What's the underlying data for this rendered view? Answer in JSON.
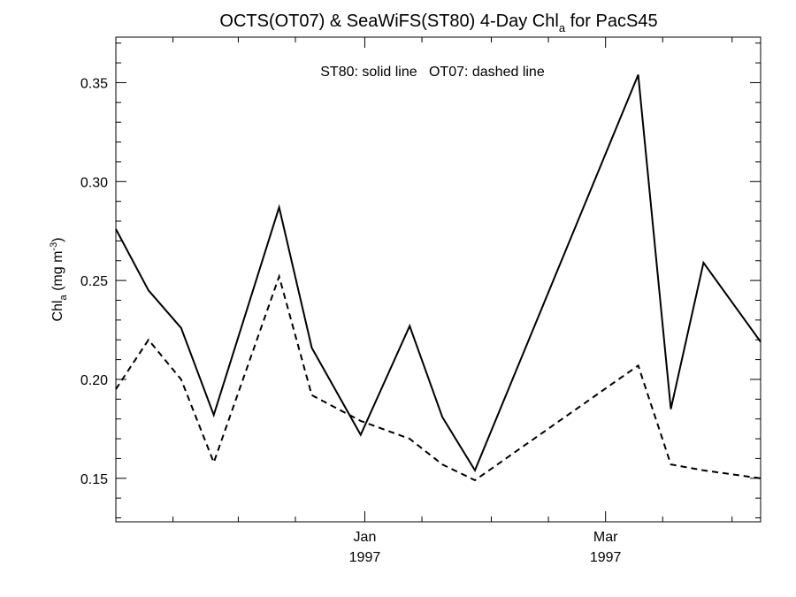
{
  "chart_data": {
    "type": "line",
    "title": {
      "main": "OCTS(OT07) & SeaWiFS(ST80) 4-Day Chl",
      "sub": "a",
      "suffix": " for PacS45"
    },
    "ylabel": {
      "main": "Chl",
      "sub": "a",
      "unit_pre": " (mg m",
      "sup": "-3",
      "unit_post": ")"
    },
    "xlabel": "",
    "legend_text": "ST80: solid line   OT07: dashed line",
    "xlim": [
      "1996-11-01",
      "1997-04-08"
    ],
    "ylim": [
      0.128,
      0.373
    ],
    "yticks": [
      "0.15",
      "0.20",
      "0.25",
      "0.30",
      "0.35"
    ],
    "xtick_labels": [
      {
        "date": "1997-01-01",
        "line1": "Jan",
        "line2": "1997"
      },
      {
        "date": "1997-03-01",
        "line1": "Mar",
        "line2": "1997"
      }
    ],
    "grid": false,
    "series": [
      {
        "name": "ST80",
        "style": "solid",
        "color": "#000000",
        "x": [
          "1996-11-01",
          "1996-11-09",
          "1996-11-17",
          "1996-11-25",
          "1996-12-11",
          "1996-12-19",
          "1996-12-31",
          "1997-01-12",
          "1997-01-20",
          "1997-01-28",
          "1997-03-09",
          "1997-03-17",
          "1997-03-25",
          "1997-04-08"
        ],
        "y": [
          0.276,
          0.245,
          0.226,
          0.182,
          0.287,
          0.216,
          0.172,
          0.227,
          0.181,
          0.154,
          0.354,
          0.185,
          0.259,
          0.219
        ]
      },
      {
        "name": "OT07",
        "style": "dashed",
        "color": "#000000",
        "x": [
          "1996-11-01",
          "1996-11-09",
          "1996-11-17",
          "1996-11-25",
          "1996-12-11",
          "1996-12-19",
          "1996-12-31",
          "1997-01-12",
          "1997-01-20",
          "1997-01-28",
          "1997-03-09",
          "1997-03-17",
          "1997-03-25",
          "1997-04-08"
        ],
        "y": [
          0.195,
          0.22,
          0.2,
          0.158,
          0.252,
          0.192,
          0.179,
          0.17,
          0.157,
          0.149,
          0.207,
          0.157,
          0.154,
          0.15
        ]
      }
    ]
  }
}
